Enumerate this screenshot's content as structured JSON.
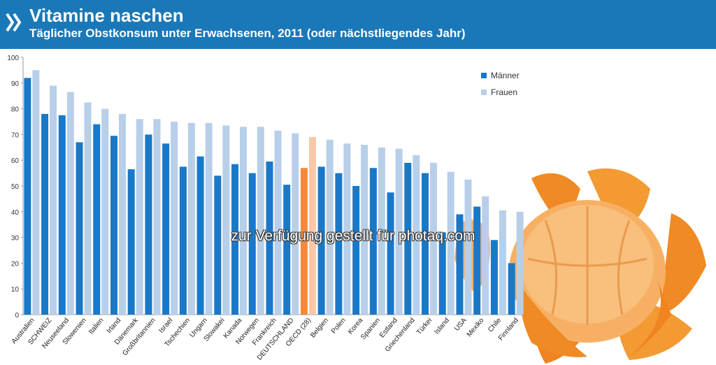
{
  "header": {
    "title": "Vitamine naschen",
    "subtitle": "Täglicher Obstkonsum unter Erwachsenen, 2011 (oder nächstliegendes Jahr)",
    "brand_color": "#1a78b8"
  },
  "watermark": "zur Verfügung gestellt für photaq.com",
  "colors": {
    "maenner": "#1a78c8",
    "frauen": "#b8cfe9",
    "oecd_maenner": "#f28a3c",
    "oecd_frauen": "#f9c8a8"
  },
  "chart_data": {
    "type": "bar",
    "categories": [
      "Australien",
      "SCHWEIZ",
      "Neuseeland",
      "Slowenien",
      "Italien",
      "Irland",
      "Dänemark",
      "Großbritannien",
      "Israel",
      "Tschechien",
      "Ungarn",
      "Slowakei",
      "Kanada",
      "Norwegen",
      "Frankreich",
      "DEUTSCHLAND",
      "OECD (28)",
      "Belgien",
      "Polen",
      "Korea",
      "Spanien",
      "Estland",
      "Griechenland",
      "Türkei",
      "Island",
      "USA",
      "Mexiko",
      "Chile",
      "Finnland"
    ],
    "series": [
      {
        "name": "Männer",
        "values": [
          92,
          78,
          77.5,
          67,
          74,
          69.5,
          56.5,
          70,
          66.5,
          57.5,
          61.5,
          54,
          58.5,
          55,
          59.5,
          50.5,
          57,
          57.5,
          55,
          50,
          57,
          47.5,
          59,
          55,
          32,
          39,
          42,
          29,
          20
        ]
      },
      {
        "name": "Frauen",
        "values": [
          95,
          89,
          86.5,
          82.5,
          80,
          78,
          76,
          76,
          75,
          74.5,
          74.5,
          73.5,
          73,
          73,
          71.5,
          70.5,
          69,
          68,
          66.5,
          66,
          65,
          64.5,
          62,
          59,
          55.5,
          52.5,
          46,
          40.5,
          40
        ]
      }
    ],
    "highlight_category": "OECD (28)",
    "ylim": [
      0,
      100
    ],
    "yticks": [
      0,
      10,
      20,
      30,
      40,
      50,
      60,
      70,
      80,
      90,
      100
    ],
    "grid": false,
    "legend": {
      "placement": "top-right",
      "entries": [
        "Männer",
        "Frauen"
      ]
    }
  }
}
